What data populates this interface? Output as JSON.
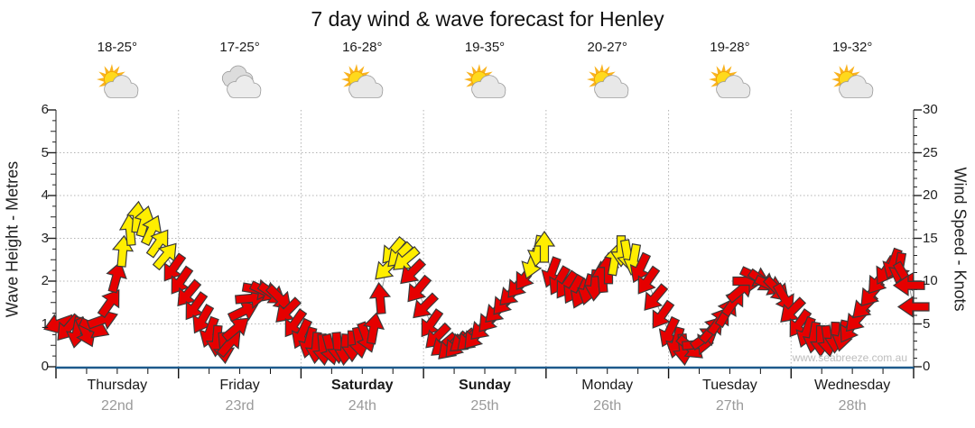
{
  "title": "7 day wind & wave forecast for Henley",
  "watermark": "www.seabreeze.com.au",
  "axes": {
    "left_label": "Wave Height - Metres",
    "right_label": "Wind Speed - Knots",
    "left_ticks": [
      0,
      1,
      2,
      3,
      4,
      5,
      6
    ],
    "right_ticks": [
      0,
      5,
      10,
      15,
      20,
      25,
      30
    ],
    "left_range_metres": [
      0,
      6
    ],
    "right_range_knots": [
      0,
      30
    ],
    "grid": "dotted horizontal each metre, dotted vertical each day boundary"
  },
  "days": [
    {
      "name": "Thursday",
      "date": "22nd",
      "temp": "18-25°",
      "icon": "partly-cloudy",
      "bold": false
    },
    {
      "name": "Friday",
      "date": "23rd",
      "temp": "17-25°",
      "icon": "cloudy",
      "bold": false
    },
    {
      "name": "Saturday",
      "date": "24th",
      "temp": "16-28°",
      "icon": "partly-cloudy",
      "bold": true
    },
    {
      "name": "Sunday",
      "date": "25th",
      "temp": "19-35°",
      "icon": "partly-cloudy",
      "bold": true
    },
    {
      "name": "Monday",
      "date": "26th",
      "temp": "20-27°",
      "icon": "partly-cloudy",
      "bold": false
    },
    {
      "name": "Tuesday",
      "date": "27th",
      "temp": "19-28°",
      "icon": "partly-cloudy",
      "bold": false
    },
    {
      "name": "Wednesday",
      "date": "28th",
      "temp": "19-32°",
      "icon": "partly-cloudy",
      "bold": false
    }
  ],
  "chart_data": {
    "type": "wind-arrows-timeseries",
    "title": "7 day wind & wave forecast for Henley",
    "x": "chart pixels 0-950 spanning 7 equal day columns (Thu 22nd - Wed 28th)",
    "y_right_knots_range": [
      0,
      30
    ],
    "y_left_metres_range": [
      0,
      6
    ],
    "arrow_meaning": "each arrow = forecast wind sample; vertical position = wind speed in knots; rotation = direction wind blows toward (0=up,90=right,180=down,270=left); yellow = stronger wind",
    "colors": {
      "red": "#e60000",
      "yellow": "#ffee00",
      "outline": "#3a3a3a",
      "connector": "#9a9a9a",
      "x_axis": "#1d5a8c"
    },
    "arrows": [
      [
        3,
        5,
        250,
        "r"
      ],
      [
        13,
        4.5,
        220,
        "r"
      ],
      [
        23,
        4,
        190,
        "r"
      ],
      [
        33,
        4,
        155,
        "r"
      ],
      [
        43,
        4.5,
        115,
        "r"
      ],
      [
        52,
        5.5,
        70,
        "r"
      ],
      [
        60,
        7.5,
        35,
        "r"
      ],
      [
        67,
        10.5,
        15,
        "r"
      ],
      [
        74,
        13.5,
        5,
        "y"
      ],
      [
        82,
        16,
        355,
        "y"
      ],
      [
        90,
        17.5,
        5,
        "y"
      ],
      [
        98,
        17,
        15,
        "y"
      ],
      [
        106,
        16,
        25,
        "y"
      ],
      [
        114,
        14.5,
        35,
        "y"
      ],
      [
        122,
        13,
        40,
        "y"
      ],
      [
        130,
        11.5,
        215,
        "r"
      ],
      [
        138,
        10,
        215,
        "r"
      ],
      [
        146,
        8.5,
        220,
        "r"
      ],
      [
        154,
        7,
        215,
        "r"
      ],
      [
        162,
        5.5,
        210,
        "r"
      ],
      [
        170,
        4,
        200,
        "r"
      ],
      [
        178,
        3,
        185,
        "r"
      ],
      [
        186,
        2.2,
        175,
        "r"
      ],
      [
        193,
        2.8,
        40,
        "r"
      ],
      [
        200,
        4.5,
        50,
        "r"
      ],
      [
        208,
        6.5,
        65,
        "r"
      ],
      [
        216,
        8,
        85,
        "r"
      ],
      [
        224,
        9,
        100,
        "r"
      ],
      [
        232,
        8.8,
        115,
        "r"
      ],
      [
        240,
        8.5,
        125,
        "r"
      ],
      [
        248,
        8,
        135,
        "r"
      ],
      [
        256,
        6.5,
        225,
        "r"
      ],
      [
        264,
        5,
        215,
        "r"
      ],
      [
        272,
        3.8,
        205,
        "r"
      ],
      [
        280,
        2.8,
        195,
        "r"
      ],
      [
        288,
        2.2,
        185,
        "r"
      ],
      [
        296,
        2,
        175,
        "r"
      ],
      [
        304,
        2,
        165,
        "r"
      ],
      [
        312,
        2.2,
        175,
        "r"
      ],
      [
        320,
        2,
        185,
        "r"
      ],
      [
        328,
        2.4,
        180,
        "r"
      ],
      [
        336,
        2.8,
        170,
        "r"
      ],
      [
        344,
        3.4,
        160,
        "r"
      ],
      [
        352,
        4.5,
        10,
        "r"
      ],
      [
        359,
        8,
        355,
        "r"
      ],
      [
        366,
        11.5,
        225,
        "y"
      ],
      [
        373,
        13.5,
        220,
        "y"
      ],
      [
        380,
        13,
        225,
        "y"
      ],
      [
        387,
        12.5,
        230,
        "y"
      ],
      [
        394,
        11,
        225,
        "r"
      ],
      [
        401,
        9,
        220,
        "r"
      ],
      [
        408,
        7,
        225,
        "r"
      ],
      [
        415,
        5,
        215,
        "r"
      ],
      [
        422,
        3.5,
        225,
        "r"
      ],
      [
        429,
        2.5,
        230,
        "r"
      ],
      [
        436,
        2.2,
        225,
        "r"
      ],
      [
        443,
        2.5,
        220,
        "r"
      ],
      [
        450,
        3,
        230,
        "r"
      ],
      [
        457,
        3.2,
        225,
        "r"
      ],
      [
        464,
        3.5,
        220,
        "r"
      ],
      [
        472,
        4.5,
        225,
        "r"
      ],
      [
        480,
        5.5,
        220,
        "r"
      ],
      [
        488,
        6.5,
        225,
        "r"
      ],
      [
        496,
        7.5,
        220,
        "r"
      ],
      [
        504,
        8.5,
        225,
        "r"
      ],
      [
        512,
        9.5,
        220,
        "r"
      ],
      [
        520,
        10.5,
        215,
        "r"
      ],
      [
        527,
        12,
        200,
        "y"
      ],
      [
        534,
        13.5,
        190,
        "y"
      ],
      [
        541,
        14,
        0,
        "y"
      ],
      [
        549,
        11,
        200,
        "r"
      ],
      [
        557,
        10,
        210,
        "r"
      ],
      [
        565,
        9.5,
        215,
        "r"
      ],
      [
        573,
        9,
        210,
        "r"
      ],
      [
        581,
        8.5,
        205,
        "r"
      ],
      [
        589,
        9,
        195,
        "r"
      ],
      [
        597,
        9.5,
        185,
        "r"
      ],
      [
        605,
        10.5,
        355,
        "r"
      ],
      [
        612,
        11.5,
        0,
        "r"
      ],
      [
        619,
        12.5,
        10,
        "y"
      ],
      [
        626,
        13.5,
        180,
        "y"
      ],
      [
        633,
        13,
        170,
        "y"
      ],
      [
        640,
        12.5,
        190,
        "y"
      ],
      [
        647,
        11.5,
        205,
        "r"
      ],
      [
        655,
        10,
        215,
        "r"
      ],
      [
        663,
        8,
        220,
        "r"
      ],
      [
        671,
        6,
        215,
        "r"
      ],
      [
        679,
        4,
        205,
        "r"
      ],
      [
        687,
        2.8,
        195,
        "r"
      ],
      [
        695,
        2,
        175,
        "r"
      ],
      [
        703,
        2.2,
        130,
        "r"
      ],
      [
        711,
        2.6,
        85,
        "r"
      ],
      [
        719,
        3.4,
        55,
        "r"
      ],
      [
        727,
        4.4,
        40,
        "r"
      ],
      [
        735,
        5.4,
        35,
        "r"
      ],
      [
        743,
        6.4,
        30,
        "r"
      ],
      [
        751,
        7.6,
        35,
        "r"
      ],
      [
        759,
        9,
        50,
        "r"
      ],
      [
        767,
        10,
        90,
        "r"
      ],
      [
        775,
        10.5,
        115,
        "r"
      ],
      [
        783,
        10,
        125,
        "r"
      ],
      [
        791,
        9.5,
        115,
        "r"
      ],
      [
        799,
        9,
        135,
        "r"
      ],
      [
        807,
        8,
        150,
        "r"
      ],
      [
        815,
        6.5,
        225,
        "r"
      ],
      [
        823,
        5,
        215,
        "r"
      ],
      [
        831,
        4,
        200,
        "r"
      ],
      [
        839,
        3.4,
        190,
        "r"
      ],
      [
        847,
        3,
        180,
        "r"
      ],
      [
        855,
        3,
        172,
        "r"
      ],
      [
        863,
        3.4,
        182,
        "r"
      ],
      [
        871,
        3.6,
        192,
        "r"
      ],
      [
        879,
        4.4,
        212,
        "r"
      ],
      [
        887,
        5.5,
        222,
        "r"
      ],
      [
        895,
        7,
        225,
        "r"
      ],
      [
        903,
        8.5,
        220,
        "r"
      ],
      [
        911,
        10,
        218,
        "r"
      ],
      [
        919,
        11.2,
        212,
        "r"
      ],
      [
        927,
        12,
        200,
        "r"
      ],
      [
        934,
        11.5,
        190,
        "r"
      ],
      [
        940,
        10.5,
        150,
        "r"
      ],
      [
        945,
        9.5,
        270,
        "r"
      ],
      [
        950,
        7,
        270,
        "r"
      ]
    ]
  }
}
